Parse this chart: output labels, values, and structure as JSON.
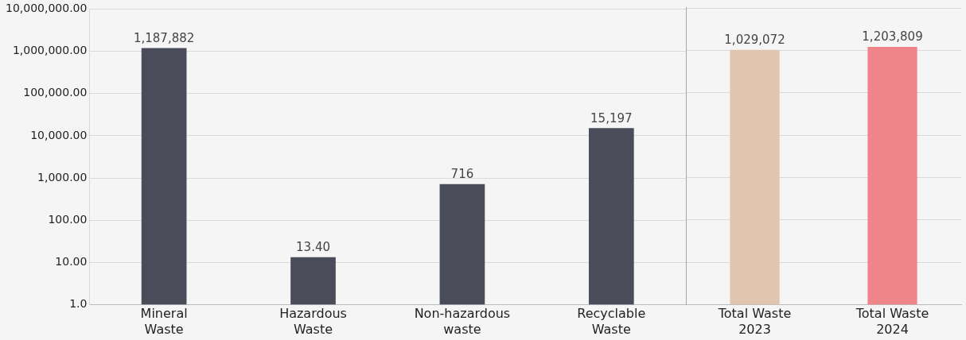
{
  "chart_data": [
    {
      "type": "bar",
      "categories": [
        "Mineral Waste",
        "Hazardous Waste",
        "Non-hazardous waste",
        "Recyclable Waste"
      ],
      "values": [
        1187882,
        13.4,
        716,
        15197
      ],
      "colors": [
        "#4a4d59",
        "#4a4d59",
        "#4a4d59",
        "#4a4d59"
      ],
      "value_labels": [
        "1,187,882",
        "13.40",
        "716",
        "15,197"
      ],
      "log": "y",
      "ylim": [
        1,
        10000000
      ],
      "yticks": [
        {
          "value": 1,
          "label": "1.0"
        },
        {
          "value": 10,
          "label": "10.00"
        },
        {
          "value": 100,
          "label": "100.00"
        },
        {
          "value": 1000,
          "label": "1,000.00"
        },
        {
          "value": 10000,
          "label": "10,000.00"
        },
        {
          "value": 100000,
          "label": "100,000.00"
        },
        {
          "value": 1000000,
          "label": "1,000,000.00"
        },
        {
          "value": 10000000,
          "label": "10,000,000.00"
        }
      ],
      "grid": "y",
      "legend": false
    },
    {
      "type": "bar",
      "categories": [
        "Total Waste 2023",
        "Total Waste 2024"
      ],
      "values": [
        1029072,
        1203809
      ],
      "colors": [
        "#e0c5b0",
        "#ef858b"
      ],
      "value_labels": [
        "1,029,072",
        "1,203,809"
      ],
      "log": "y",
      "ylim": [
        1,
        10000000
      ],
      "yticks": [
        {
          "value": 1,
          "label": null
        },
        {
          "value": 10,
          "label": null
        },
        {
          "value": 100,
          "label": null
        },
        {
          "value": 1000,
          "label": null
        },
        {
          "value": 10000,
          "label": null
        },
        {
          "value": 100000,
          "label": null
        },
        {
          "value": 1000000,
          "label": null
        },
        {
          "value": 10000000,
          "label": null
        }
      ],
      "tick_labels": "x",
      "grid": "y",
      "legend": false
    }
  ]
}
